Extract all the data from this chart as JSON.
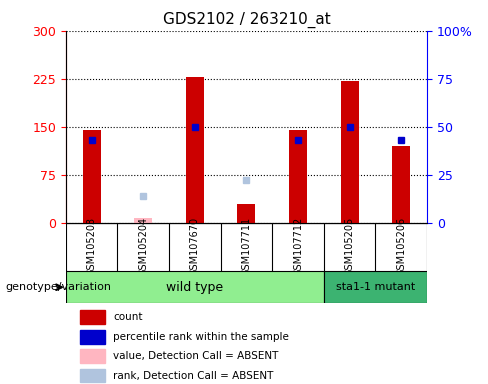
{
  "title": "GDS2102 / 263210_at",
  "samples": [
    "GSM105203",
    "GSM105204",
    "GSM107670",
    "GSM107711",
    "GSM107712",
    "GSM105205",
    "GSM105206"
  ],
  "count_values": [
    145,
    null,
    228,
    30,
    145,
    222,
    120
  ],
  "count_absent": [
    null,
    8,
    null,
    null,
    null,
    null,
    null
  ],
  "rank_values": [
    43,
    null,
    50,
    null,
    43,
    50,
    43
  ],
  "rank_absent": [
    null,
    14,
    null,
    22,
    null,
    null,
    null
  ],
  "ylim_left": [
    0,
    300
  ],
  "ylim_right": [
    0,
    100
  ],
  "yticks_left": [
    0,
    75,
    150,
    225,
    300
  ],
  "yticks_right": [
    0,
    25,
    50,
    75,
    100
  ],
  "bar_color": "#CC0000",
  "bar_absent_color": "#FFB6C1",
  "rank_color": "#0000CC",
  "rank_absent_color": "#B0C4DE",
  "wt_color": "#90EE90",
  "mut_color": "#3CB371",
  "legend_items": [
    {
      "color": "#CC0000",
      "label": "count"
    },
    {
      "color": "#0000CC",
      "label": "percentile rank within the sample"
    },
    {
      "color": "#FFB6C1",
      "label": "value, Detection Call = ABSENT"
    },
    {
      "color": "#B0C4DE",
      "label": "rank, Detection Call = ABSENT"
    }
  ]
}
